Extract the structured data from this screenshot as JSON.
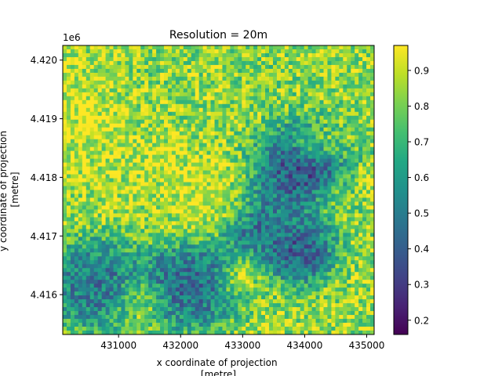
{
  "chart_data": {
    "type": "heatmap",
    "title": "Resolution = 20m",
    "xlabel": [
      "x coordinate of projection",
      "[metre]"
    ],
    "ylabel": [
      "y coordinate of projection",
      "[metre]"
    ],
    "y_offset_label": "1e6",
    "x_ticks": [
      "431000",
      "432000",
      "433000",
      "434000",
      "435000"
    ],
    "x_tick_values": [
      431000,
      432000,
      433000,
      434000,
      435000
    ],
    "y_ticks": [
      "4.416",
      "4.417",
      "4.418",
      "4.419",
      "4.420"
    ],
    "y_tick_values": [
      4.416,
      4.417,
      4.418,
      4.419,
      4.42
    ],
    "xlim": [
      430100,
      435120
    ],
    "ylim": [
      4.41532,
      4.42025
    ],
    "colorbar": {
      "colormap": "viridis",
      "ticks": [
        "0.2",
        "0.3",
        "0.4",
        "0.5",
        "0.6",
        "0.7",
        "0.8",
        "0.9"
      ],
      "tick_values": [
        0.2,
        0.3,
        0.4,
        0.5,
        0.6,
        0.7,
        0.8,
        0.9
      ],
      "range": [
        0.16,
        0.97
      ]
    }
  }
}
